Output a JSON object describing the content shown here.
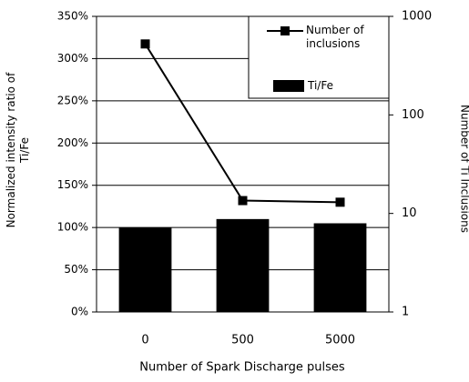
{
  "chart_data": {
    "type": "bar",
    "xlabel": "Number of Spark Discharge pulses",
    "ylabel": "Normalized intensity ratio of Ti/Fe",
    "y2label": "Number of Ti Inclusions",
    "categories": [
      "0",
      "500",
      "5000"
    ],
    "series": [
      {
        "name": "Number of inclusions",
        "type": "line",
        "color": "#000000",
        "axis": "y2",
        "values": [
          525,
          13.5,
          13
        ]
      },
      {
        "name": "Ti/Fe",
        "type": "bar",
        "color": "#000000",
        "values": [
          100,
          110,
          105
        ]
      }
    ],
    "ylim": [
      0,
      350
    ],
    "yticks": [
      {
        "value": 0,
        "label": "0%"
      },
      {
        "value": 50,
        "label": "50%"
      },
      {
        "value": 100,
        "label": "100%"
      },
      {
        "value": 150,
        "label": "150%"
      },
      {
        "value": 200,
        "label": "200%"
      },
      {
        "value": 250,
        "label": "250%"
      },
      {
        "value": 300,
        "label": "300%"
      },
      {
        "value": 350,
        "label": "350%"
      }
    ],
    "y2lim": [
      1,
      1000
    ],
    "y2ticks": [
      1,
      10,
      100,
      1000
    ],
    "y2scale": "log",
    "grid": true,
    "legend": "upper right"
  }
}
